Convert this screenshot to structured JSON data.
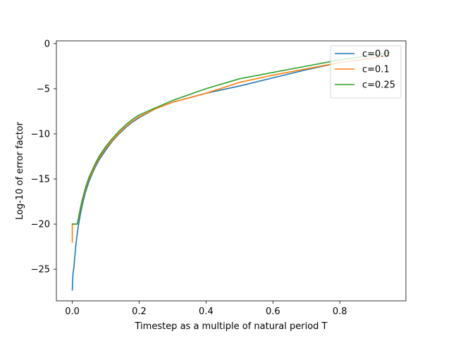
{
  "chart_data": {
    "type": "line",
    "title": "",
    "xlabel": "Timestep as a multiple of natural period T",
    "ylabel": "Log-10 of error factor",
    "xlim": [
      -0.0475,
      0.9975
    ],
    "ylim": [
      -28.5,
      0.3
    ],
    "xticks": [
      0.0,
      0.2,
      0.4,
      0.6,
      0.8
    ],
    "xtick_labels": [
      "0.0",
      "0.2",
      "0.4",
      "0.6",
      "0.8"
    ],
    "yticks": [
      0,
      -5,
      -10,
      -15,
      -20,
      -25
    ],
    "ytick_labels": [
      "0",
      "−5",
      "−10",
      "−15",
      "−20",
      "−25"
    ],
    "grid": false,
    "legend_position": "top-right",
    "series": [
      {
        "name": "c=0.0",
        "color": "#1f77b4",
        "x": [
          0.0,
          0.001,
          0.002,
          0.005,
          0.01,
          0.015,
          0.02,
          0.025,
          0.03,
          0.04,
          0.05,
          0.06,
          0.07,
          0.08,
          0.1,
          0.12,
          0.14,
          0.16,
          0.18,
          0.2,
          0.25,
          0.3,
          0.4,
          0.5,
          0.6,
          0.7,
          0.8,
          0.9,
          0.95
        ],
        "y": [
          -27.3,
          -26.5,
          -25.6,
          -24.7,
          -22.6,
          -21.0,
          -19.8,
          -18.8,
          -17.9,
          -16.4,
          -15.3,
          -14.4,
          -13.6,
          -12.9,
          -11.8,
          -10.8,
          -10.0,
          -9.3,
          -8.7,
          -8.2,
          -7.2,
          -6.5,
          -5.5,
          -4.7,
          -3.8,
          -2.9,
          -2.1,
          -1.6,
          -1.3
        ]
      },
      {
        "name": "c=0.1",
        "color": "#ff7f0e",
        "x": [
          0.0,
          0.0001,
          0.001,
          0.01,
          0.015,
          0.02,
          0.025,
          0.03,
          0.04,
          0.05,
          0.06,
          0.07,
          0.08,
          0.1,
          0.12,
          0.14,
          0.16,
          0.18,
          0.2,
          0.25,
          0.3,
          0.4,
          0.5,
          0.6,
          0.7,
          0.8,
          0.9,
          0.95
        ],
        "y": [
          -22.0,
          -20.0,
          -20.0,
          -20.0,
          -20.0,
          -19.2,
          -18.3,
          -17.5,
          -16.1,
          -15.0,
          -14.2,
          -13.4,
          -12.7,
          -11.6,
          -10.7,
          -9.9,
          -9.2,
          -8.6,
          -8.1,
          -7.2,
          -6.5,
          -5.5,
          -4.3,
          -3.5,
          -2.8,
          -2.1,
          -1.6,
          -1.3
        ]
      },
      {
        "name": "c=0.25",
        "color": "#2ca02c",
        "x": [
          0.0,
          0.01,
          0.015,
          0.02,
          0.025,
          0.03,
          0.04,
          0.05,
          0.06,
          0.07,
          0.08,
          0.1,
          0.12,
          0.14,
          0.16,
          0.18,
          0.2,
          0.25,
          0.3,
          0.4,
          0.5,
          0.6,
          0.7,
          0.8,
          0.9,
          0.95
        ],
        "y": [
          -20.0,
          -20.0,
          -20.0,
          -19.0,
          -18.1,
          -17.3,
          -15.9,
          -14.8,
          -14.0,
          -13.2,
          -12.5,
          -11.4,
          -10.5,
          -9.7,
          -9.0,
          -8.4,
          -7.9,
          -7.1,
          -6.3,
          -5.0,
          -3.9,
          -3.2,
          -2.5,
          -1.8,
          -1.3,
          -1.0
        ]
      }
    ]
  }
}
